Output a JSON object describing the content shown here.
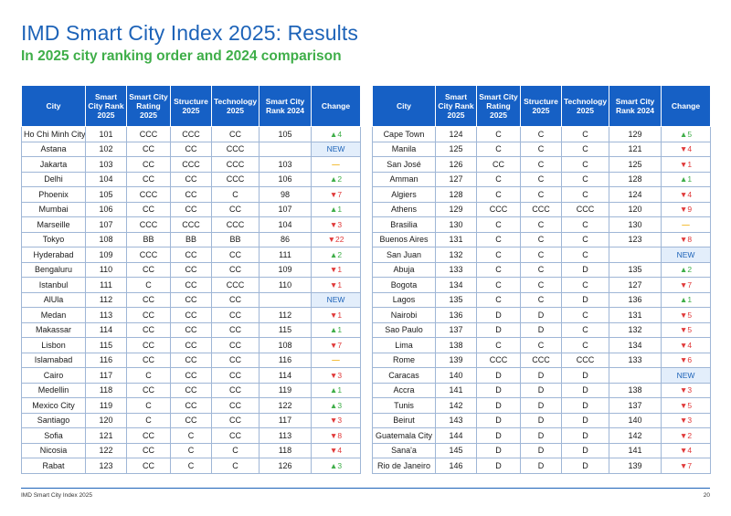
{
  "title": "IMD Smart City Index 2025: Results",
  "subtitle": "In 2025 city ranking order and 2024 comparison",
  "columns": [
    "City",
    "Smart City Rank 2025",
    "Smart City Rating 2025",
    "Structure 2025",
    "Technology 2025",
    "Smart City Rank 2024",
    "Change"
  ],
  "colors": {
    "accent": "#1d63b8",
    "header_bg": "#1660c5",
    "up": "#3fae49",
    "down": "#e03a3a",
    "same": "#f2b41b",
    "new_bg": "#e3eefb"
  },
  "tables": [
    {
      "rows": [
        {
          "city": "Ho Chi Minh City",
          "rank2025": "101",
          "rating": "CCC",
          "structure": "CCC",
          "technology": "CC",
          "rank2024": "105",
          "change": "▲4",
          "dir": "up"
        },
        {
          "city": "Astana",
          "rank2025": "102",
          "rating": "CC",
          "structure": "CC",
          "technology": "CCC",
          "rank2024": "",
          "change": "NEW",
          "dir": "new"
        },
        {
          "city": "Jakarta",
          "rank2025": "103",
          "rating": "CC",
          "structure": "CCC",
          "technology": "CCC",
          "rank2024": "103",
          "change": "—",
          "dir": "same"
        },
        {
          "city": "Delhi",
          "rank2025": "104",
          "rating": "CC",
          "structure": "CC",
          "technology": "CCC",
          "rank2024": "106",
          "change": "▲2",
          "dir": "up"
        },
        {
          "city": "Phoenix",
          "rank2025": "105",
          "rating": "CCC",
          "structure": "CC",
          "technology": "C",
          "rank2024": "98",
          "change": "▼7",
          "dir": "down"
        },
        {
          "city": "Mumbai",
          "rank2025": "106",
          "rating": "CC",
          "structure": "CC",
          "technology": "CC",
          "rank2024": "107",
          "change": "▲1",
          "dir": "up"
        },
        {
          "city": "Marseille",
          "rank2025": "107",
          "rating": "CCC",
          "structure": "CCC",
          "technology": "CCC",
          "rank2024": "104",
          "change": "▼3",
          "dir": "down"
        },
        {
          "city": "Tokyo",
          "rank2025": "108",
          "rating": "BB",
          "structure": "BB",
          "technology": "BB",
          "rank2024": "86",
          "change": "▼22",
          "dir": "down"
        },
        {
          "city": "Hyderabad",
          "rank2025": "109",
          "rating": "CCC",
          "structure": "CC",
          "technology": "CC",
          "rank2024": "111",
          "change": "▲2",
          "dir": "up"
        },
        {
          "city": "Bengaluru",
          "rank2025": "110",
          "rating": "CC",
          "structure": "CC",
          "technology": "CC",
          "rank2024": "109",
          "change": "▼1",
          "dir": "down"
        },
        {
          "city": "Istanbul",
          "rank2025": "111",
          "rating": "C",
          "structure": "CC",
          "technology": "CCC",
          "rank2024": "110",
          "change": "▼1",
          "dir": "down"
        },
        {
          "city": "AlUla",
          "rank2025": "112",
          "rating": "CC",
          "structure": "CC",
          "technology": "CC",
          "rank2024": "",
          "change": "NEW",
          "dir": "new"
        },
        {
          "city": "Medan",
          "rank2025": "113",
          "rating": "CC",
          "structure": "CC",
          "technology": "CC",
          "rank2024": "112",
          "change": "▼1",
          "dir": "down"
        },
        {
          "city": "Makassar",
          "rank2025": "114",
          "rating": "CC",
          "structure": "CC",
          "technology": "CC",
          "rank2024": "115",
          "change": "▲1",
          "dir": "up"
        },
        {
          "city": "Lisbon",
          "rank2025": "115",
          "rating": "CC",
          "structure": "CC",
          "technology": "CC",
          "rank2024": "108",
          "change": "▼7",
          "dir": "down"
        },
        {
          "city": "Islamabad",
          "rank2025": "116",
          "rating": "CC",
          "structure": "CC",
          "technology": "CC",
          "rank2024": "116",
          "change": "—",
          "dir": "same"
        },
        {
          "city": "Cairo",
          "rank2025": "117",
          "rating": "C",
          "structure": "CC",
          "technology": "CC",
          "rank2024": "114",
          "change": "▼3",
          "dir": "down"
        },
        {
          "city": "Medellin",
          "rank2025": "118",
          "rating": "CC",
          "structure": "CC",
          "technology": "CC",
          "rank2024": "119",
          "change": "▲1",
          "dir": "up"
        },
        {
          "city": "Mexico City",
          "rank2025": "119",
          "rating": "C",
          "structure": "CC",
          "technology": "CC",
          "rank2024": "122",
          "change": "▲3",
          "dir": "up"
        },
        {
          "city": "Santiago",
          "rank2025": "120",
          "rating": "C",
          "structure": "CC",
          "technology": "CC",
          "rank2024": "117",
          "change": "▼3",
          "dir": "down"
        },
        {
          "city": "Sofia",
          "rank2025": "121",
          "rating": "CC",
          "structure": "C",
          "technology": "CC",
          "rank2024": "113",
          "change": "▼8",
          "dir": "down"
        },
        {
          "city": "Nicosia",
          "rank2025": "122",
          "rating": "CC",
          "structure": "C",
          "technology": "C",
          "rank2024": "118",
          "change": "▼4",
          "dir": "down"
        },
        {
          "city": "Rabat",
          "rank2025": "123",
          "rating": "CC",
          "structure": "C",
          "technology": "C",
          "rank2024": "126",
          "change": "▲3",
          "dir": "up"
        }
      ]
    },
    {
      "rows": [
        {
          "city": "Cape Town",
          "rank2025": "124",
          "rating": "C",
          "structure": "C",
          "technology": "C",
          "rank2024": "129",
          "change": "▲5",
          "dir": "up"
        },
        {
          "city": "Manila",
          "rank2025": "125",
          "rating": "C",
          "structure": "C",
          "technology": "C",
          "rank2024": "121",
          "change": "▼4",
          "dir": "down"
        },
        {
          "city": "San José",
          "rank2025": "126",
          "rating": "CC",
          "structure": "C",
          "technology": "C",
          "rank2024": "125",
          "change": "▼1",
          "dir": "down"
        },
        {
          "city": "Amman",
          "rank2025": "127",
          "rating": "C",
          "structure": "C",
          "technology": "C",
          "rank2024": "128",
          "change": "▲1",
          "dir": "up"
        },
        {
          "city": "Algiers",
          "rank2025": "128",
          "rating": "C",
          "structure": "C",
          "technology": "C",
          "rank2024": "124",
          "change": "▼4",
          "dir": "down"
        },
        {
          "city": "Athens",
          "rank2025": "129",
          "rating": "CCC",
          "structure": "CCC",
          "technology": "CCC",
          "rank2024": "120",
          "change": "▼9",
          "dir": "down"
        },
        {
          "city": "Brasilia",
          "rank2025": "130",
          "rating": "C",
          "structure": "C",
          "technology": "C",
          "rank2024": "130",
          "change": "—",
          "dir": "same"
        },
        {
          "city": "Buenos Aires",
          "rank2025": "131",
          "rating": "C",
          "structure": "C",
          "technology": "C",
          "rank2024": "123",
          "change": "▼8",
          "dir": "down"
        },
        {
          "city": "San Juan",
          "rank2025": "132",
          "rating": "C",
          "structure": "C",
          "technology": "C",
          "rank2024": "",
          "change": "NEW",
          "dir": "new"
        },
        {
          "city": "Abuja",
          "rank2025": "133",
          "rating": "C",
          "structure": "C",
          "technology": "D",
          "rank2024": "135",
          "change": "▲2",
          "dir": "up"
        },
        {
          "city": "Bogota",
          "rank2025": "134",
          "rating": "C",
          "structure": "C",
          "technology": "C",
          "rank2024": "127",
          "change": "▼7",
          "dir": "down"
        },
        {
          "city": "Lagos",
          "rank2025": "135",
          "rating": "C",
          "structure": "C",
          "technology": "D",
          "rank2024": "136",
          "change": "▲1",
          "dir": "up"
        },
        {
          "city": "Nairobi",
          "rank2025": "136",
          "rating": "D",
          "structure": "D",
          "technology": "C",
          "rank2024": "131",
          "change": "▼5",
          "dir": "down"
        },
        {
          "city": "Sao Paulo",
          "rank2025": "137",
          "rating": "D",
          "structure": "D",
          "technology": "C",
          "rank2024": "132",
          "change": "▼5",
          "dir": "down"
        },
        {
          "city": "Lima",
          "rank2025": "138",
          "rating": "C",
          "structure": "C",
          "technology": "C",
          "rank2024": "134",
          "change": "▼4",
          "dir": "down"
        },
        {
          "city": "Rome",
          "rank2025": "139",
          "rating": "CCC",
          "structure": "CCC",
          "technology": "CCC",
          "rank2024": "133",
          "change": "▼6",
          "dir": "down"
        },
        {
          "city": "Caracas",
          "rank2025": "140",
          "rating": "D",
          "structure": "D",
          "technology": "D",
          "rank2024": "",
          "change": "NEW",
          "dir": "new"
        },
        {
          "city": "Accra",
          "rank2025": "141",
          "rating": "D",
          "structure": "D",
          "technology": "D",
          "rank2024": "138",
          "change": "▼3",
          "dir": "down"
        },
        {
          "city": "Tunis",
          "rank2025": "142",
          "rating": "D",
          "structure": "D",
          "technology": "D",
          "rank2024": "137",
          "change": "▼5",
          "dir": "down"
        },
        {
          "city": "Beirut",
          "rank2025": "143",
          "rating": "D",
          "structure": "D",
          "technology": "D",
          "rank2024": "140",
          "change": "▼3",
          "dir": "down"
        },
        {
          "city": "Guatemala City",
          "rank2025": "144",
          "rating": "D",
          "structure": "D",
          "technology": "D",
          "rank2024": "142",
          "change": "▼2",
          "dir": "down"
        },
        {
          "city": "Sana'a",
          "rank2025": "145",
          "rating": "D",
          "structure": "D",
          "technology": "D",
          "rank2024": "141",
          "change": "▼4",
          "dir": "down"
        },
        {
          "city": "Rio de Janeiro",
          "rank2025": "146",
          "rating": "D",
          "structure": "D",
          "technology": "D",
          "rank2024": "139",
          "change": "▼7",
          "dir": "down"
        }
      ]
    }
  ],
  "footer": {
    "source": "IMD Smart City Index 2025",
    "page": "20"
  }
}
